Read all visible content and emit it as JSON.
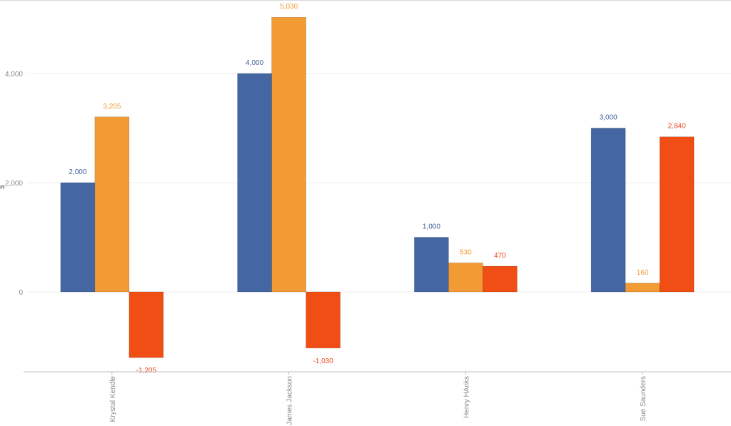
{
  "chart_data": {
    "type": "bar",
    "title": "",
    "xlabel": "",
    "ylabel": "$",
    "categories": [
      "Krystal Kendle",
      "James Jackson",
      "Henry HAnks",
      "Sue Saunders"
    ],
    "series": [
      {
        "values": [
          2000,
          4000,
          1000,
          3000
        ],
        "color": "#4466a3",
        "label_color": "#3d5e9c"
      },
      {
        "values": [
          3205,
          5030,
          530,
          160
        ],
        "color": "#f29b35",
        "label_color": "#f29b35"
      },
      {
        "values": [
          -1205,
          -1030,
          470,
          2840
        ],
        "color": "#f04e14",
        "label_color": "#e8471a"
      }
    ],
    "data_labels": [
      [
        "2,000",
        "4,000",
        "1,000",
        "3,000"
      ],
      [
        "3,205",
        "5,030",
        "530",
        "160"
      ],
      [
        "-1,205",
        "-1,030",
        "470",
        "2,840"
      ]
    ],
    "y_ticks": [
      0,
      2000,
      4000
    ],
    "y_tick_labels": [
      "0",
      "2,000",
      "4,000"
    ],
    "ylim": [
      -1480,
      5320
    ],
    "grid": true,
    "legend": "none"
  }
}
